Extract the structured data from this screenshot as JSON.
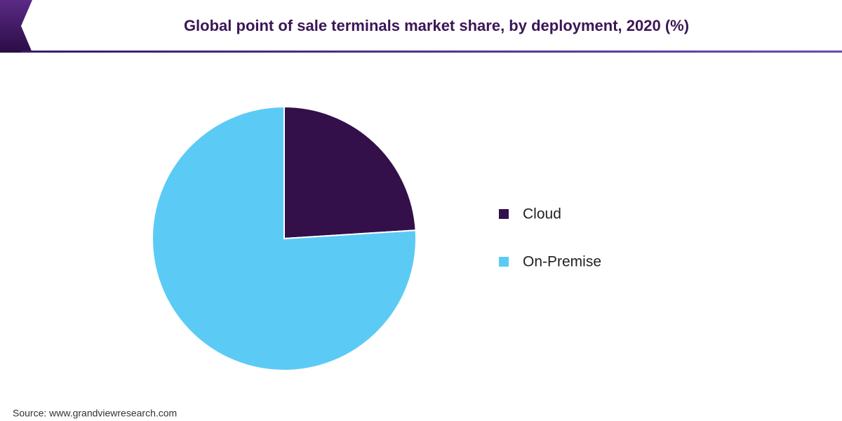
{
  "chart_data": {
    "type": "pie",
    "title": "Global point of sale terminals market share, by deployment, 2020 (%)",
    "categories": [
      "Cloud",
      "On-Premise"
    ],
    "values": [
      24,
      76
    ],
    "colors": [
      "#33104a",
      "#5bcbf5"
    ],
    "legend": "right",
    "source": "Source: www.grandviewresearch.com"
  }
}
